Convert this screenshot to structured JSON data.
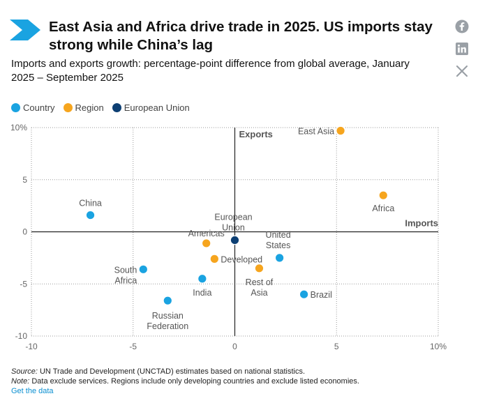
{
  "title": "East Asia and Africa drive trade in 2025. US imports stay strong while China’s lag",
  "subtitle": "Imports and exports growth: percentage-point difference from global average, January 2025 – September 2025",
  "legend": [
    {
      "label": "Country",
      "color": "#1aa3e1"
    },
    {
      "label": "Region",
      "color": "#f6a51e"
    },
    {
      "label": "European Union",
      "color": "#0d3f73"
    }
  ],
  "social": [
    "facebook-icon",
    "linkedin-icon",
    "x-icon"
  ],
  "footer": {
    "source_label": "Source:",
    "source_text": " UN Trade and Development (UNCTAD) estimates based on national statistics.",
    "note_label": "Note:",
    "note_text": " Data exclude services. Regions include only developing countries and exclude listed economies.",
    "link": "Get the data"
  },
  "chart_data": {
    "type": "scatter",
    "xlabel": "Imports",
    "ylabel": "Exports",
    "xlim": [
      -10,
      10
    ],
    "ylim": [
      -10,
      10
    ],
    "x_ticks": [
      "-10",
      "-5",
      "0",
      "5",
      "10%"
    ],
    "y_ticks": [
      "10%",
      "5",
      "0",
      "-5",
      "-10"
    ],
    "grid": "dotted",
    "colors": {
      "Country": "#1aa3e1",
      "Region": "#f6a51e",
      "European Union": "#0d3f73"
    },
    "points": [
      {
        "label": "East Asia",
        "group": "Region",
        "x": 5.2,
        "y": 9.7
      },
      {
        "label": "Africa",
        "group": "Region",
        "x": 7.3,
        "y": 3.5
      },
      {
        "label": "China",
        "group": "Country",
        "x": -7.1,
        "y": 1.6
      },
      {
        "label": "European Union",
        "group": "European Union",
        "x": 0.0,
        "y": -0.8
      },
      {
        "label": "Americas",
        "group": "Region",
        "x": -1.4,
        "y": -1.1
      },
      {
        "label": "United States",
        "group": "Country",
        "x": 2.2,
        "y": -2.5
      },
      {
        "label": "Developed",
        "group": "Region",
        "x": -1.0,
        "y": -2.6
      },
      {
        "label": "Rest of Asia",
        "group": "Region",
        "x": 1.2,
        "y": -3.5
      },
      {
        "label": "South Africa",
        "group": "Country",
        "x": -4.5,
        "y": -3.6
      },
      {
        "label": "India",
        "group": "Country",
        "x": -1.6,
        "y": -4.5
      },
      {
        "label": "Brazil",
        "group": "Country",
        "x": 3.4,
        "y": -6.0
      },
      {
        "label": "Russian Federation",
        "group": "Country",
        "x": -3.3,
        "y": -6.6
      }
    ]
  }
}
